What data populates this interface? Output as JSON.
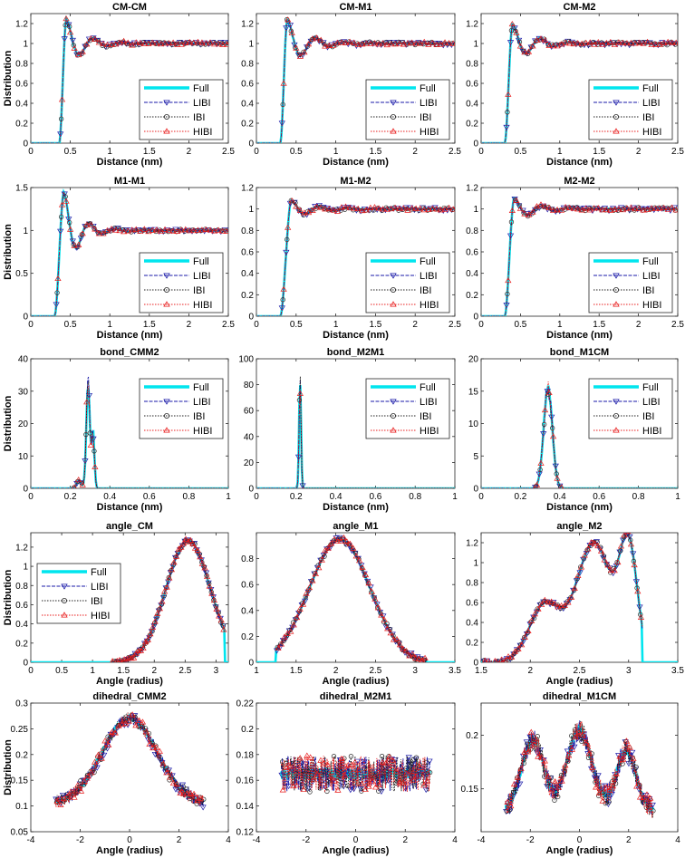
{
  "figure": {
    "legend_entries": [
      "Full",
      "LIBI",
      "IBI",
      "HIBI"
    ]
  },
  "styles": {
    "Full": {
      "color": "#00e5ee",
      "marker": "none",
      "dash": "none"
    },
    "LIBI": {
      "color": "#1a1aa8",
      "marker": "tri-down",
      "dash": "4,1.5"
    },
    "IBI": {
      "color": "#222222",
      "marker": "circle",
      "dash": "1.5,1.5"
    },
    "HIBI": {
      "color": "#e81e1e",
      "marker": "tri-up",
      "dash": "1.5,1.5"
    }
  },
  "chart_data": [
    {
      "id": "cm-cm",
      "type": "line",
      "title": "CM-CM",
      "xlabel": "Distance (nm)",
      "ylabel": "Distribution",
      "xlim": [
        0,
        2.5
      ],
      "ylim": [
        0,
        1.3
      ],
      "xticks": [
        0,
        0.5,
        1,
        1.5,
        2,
        2.5
      ],
      "yticks": [
        0,
        0.2,
        0.4,
        0.6,
        0.8,
        1,
        1.2
      ],
      "legend": "bottom-right",
      "shape": "rdf",
      "shape_params": {
        "r0": 0.36,
        "rise": 0.09,
        "peak": 1.25,
        "wavelength": 0.35,
        "decay": 0.22,
        "phase": 0.04
      }
    },
    {
      "id": "cm-m1",
      "type": "line",
      "title": "CM-M1",
      "xlabel": "Distance (nm)",
      "ylabel": "",
      "xlim": [
        0,
        2.5
      ],
      "ylim": [
        0,
        1.3
      ],
      "xticks": [
        0,
        0.5,
        1,
        1.5,
        2,
        2.5
      ],
      "yticks": [
        0,
        0.2,
        0.4,
        0.6,
        0.8,
        1,
        1.2
      ],
      "legend": "bottom-right",
      "shape": "rdf",
      "shape_params": {
        "r0": 0.3,
        "rise": 0.09,
        "peak": 1.25,
        "wavelength": 0.36,
        "decay": 0.24,
        "phase": 0.05
      }
    },
    {
      "id": "cm-m2",
      "type": "line",
      "title": "CM-M2",
      "xlabel": "Distance (nm)",
      "ylabel": "",
      "xlim": [
        0,
        2.5
      ],
      "ylim": [
        0,
        1.3
      ],
      "xticks": [
        0,
        0.5,
        1,
        1.5,
        2,
        2.5
      ],
      "yticks": [
        0,
        0.2,
        0.4,
        0.6,
        0.8,
        1,
        1.2
      ],
      "legend": "bottom-right",
      "shape": "rdf",
      "shape_params": {
        "r0": 0.3,
        "rise": 0.1,
        "peak": 1.2,
        "wavelength": 0.36,
        "decay": 0.26,
        "phase": 0.05
      }
    },
    {
      "id": "m1-m1",
      "type": "line",
      "title": "M1-M1",
      "xlabel": "Distance (nm)",
      "ylabel": "Distribution",
      "xlim": [
        0,
        2.5
      ],
      "ylim": [
        0,
        1.5
      ],
      "xticks": [
        0,
        0.5,
        1,
        1.5,
        2,
        2.5
      ],
      "yticks": [
        0,
        0.5,
        1,
        1.5
      ],
      "legend": "bottom-right",
      "shape": "rdf",
      "shape_params": {
        "r0": 0.3,
        "rise": 0.12,
        "peak": 1.45,
        "wavelength": 0.33,
        "decay": 0.2,
        "phase": 0.05
      }
    },
    {
      "id": "m1-m2",
      "type": "line",
      "title": "M1-M2",
      "xlabel": "Distance (nm)",
      "ylabel": "",
      "xlim": [
        0,
        2.5
      ],
      "ylim": [
        0,
        1.2
      ],
      "xticks": [
        0,
        0.5,
        1,
        1.5,
        2,
        2.5
      ],
      "yticks": [
        0,
        0.2,
        0.4,
        0.6,
        0.8,
        1,
        1.2
      ],
      "legend": "bottom-right",
      "shape": "rdf",
      "shape_params": {
        "r0": 0.3,
        "rise": 0.14,
        "peak": 1.08,
        "wavelength": 0.36,
        "decay": 0.32,
        "phase": 0.06
      }
    },
    {
      "id": "m2-m2",
      "type": "line",
      "title": "M2-M2",
      "xlabel": "Distance (nm)",
      "ylabel": "",
      "xlim": [
        0,
        2.5
      ],
      "ylim": [
        0,
        1.2
      ],
      "xticks": [
        0,
        0.5,
        1,
        1.5,
        2,
        2.5
      ],
      "yticks": [
        0,
        0.2,
        0.4,
        0.6,
        0.8,
        1,
        1.2
      ],
      "legend": "bottom-right",
      "shape": "rdf",
      "shape_params": {
        "r0": 0.3,
        "rise": 0.12,
        "peak": 1.1,
        "wavelength": 0.36,
        "decay": 0.28,
        "phase": 0.05
      }
    },
    {
      "id": "bond-cmm2",
      "type": "line",
      "title": "bond_CMM2",
      "xlabel": "Distance (nm)",
      "ylabel": "Distribution",
      "xlim": [
        0,
        1
      ],
      "ylim": [
        0,
        40
      ],
      "xticks": [
        0,
        0.2,
        0.4,
        0.6,
        0.8,
        1
      ],
      "yticks": [
        0,
        10,
        20,
        30,
        40
      ],
      "legend": "top-right",
      "shape": "bonds",
      "shape_params": {
        "peaks": [
          [
            0.245,
            2.5,
            0.012
          ],
          [
            0.29,
            32,
            0.009
          ],
          [
            0.315,
            17,
            0.007
          ]
        ]
      }
    },
    {
      "id": "bond-m2m1",
      "type": "line",
      "title": "bond_M2M1",
      "xlabel": "Distance (nm)",
      "ylabel": "",
      "xlim": [
        0,
        1
      ],
      "ylim": [
        0,
        100
      ],
      "xticks": [
        0,
        0.2,
        0.4,
        0.6,
        0.8,
        1
      ],
      "yticks": [
        0,
        20,
        40,
        60,
        80,
        100
      ],
      "legend": "top-right",
      "shape": "bonds",
      "shape_params": {
        "peaks": [
          [
            0.22,
            80,
            0.005
          ]
        ]
      }
    },
    {
      "id": "bond-m1cm",
      "type": "line",
      "title": "bond_M1CM",
      "xlabel": "Distance (nm)",
      "ylabel": "",
      "xlim": [
        0,
        1
      ],
      "ylim": [
        0,
        20
      ],
      "xticks": [
        0,
        0.2,
        0.4,
        0.6,
        0.8,
        1
      ],
      "yticks": [
        0,
        5,
        10,
        15,
        20
      ],
      "legend": "top-right",
      "shape": "bonds",
      "shape_params": {
        "peaks": [
          [
            0.34,
            15.5,
            0.022
          ]
        ]
      }
    },
    {
      "id": "angle-cm",
      "type": "line",
      "title": "angle_CM",
      "xlabel": "Angle (radius)",
      "ylabel": "Distribution",
      "xlim": [
        0,
        3.2
      ],
      "ylim": [
        0,
        1.35
      ],
      "xticks": [
        0,
        0.5,
        1,
        1.5,
        2,
        2.5,
        3
      ],
      "yticks": [
        0,
        0.2,
        0.4,
        0.6,
        0.8,
        1,
        1.2
      ],
      "legend": "top-left",
      "shape": "gauss",
      "shape_params": {
        "start": 1.3,
        "end": 3.14,
        "parts": [
          [
            2.55,
            1.27,
            0.36
          ]
        ]
      }
    },
    {
      "id": "angle-m1",
      "type": "line",
      "title": "angle_M1",
      "xlabel": "Angle (radius)",
      "ylabel": "",
      "xlim": [
        1,
        3.5
      ],
      "ylim": [
        0,
        1.0
      ],
      "xticks": [
        1,
        1.5,
        2,
        2.5,
        3,
        3.5
      ],
      "yticks": [
        0,
        0.2,
        0.4,
        0.6,
        0.8
      ],
      "legend": "none",
      "shape": "gauss",
      "shape_params": {
        "start": 1.25,
        "end": 3.14,
        "parts": [
          [
            2.05,
            0.95,
            0.38
          ]
        ]
      }
    },
    {
      "id": "angle-m2",
      "type": "line",
      "title": "angle_M2",
      "xlabel": "Angle (radius)",
      "ylabel": "",
      "xlim": [
        1.5,
        3.5
      ],
      "ylim": [
        0,
        1.3
      ],
      "xticks": [
        1.5,
        2,
        2.5,
        3,
        3.5
      ],
      "yticks": [
        0,
        0.2,
        0.4,
        0.6,
        0.8,
        1,
        1.2
      ],
      "legend": "none",
      "shape": "gauss",
      "shape_params": {
        "start": 1.52,
        "end": 3.14,
        "parts": [
          [
            2.15,
            0.58,
            0.16
          ],
          [
            2.65,
            1.2,
            0.18
          ],
          [
            3.0,
            1.1,
            0.09
          ]
        ]
      }
    },
    {
      "id": "dihedral-cmm2",
      "type": "line",
      "title": "dihedral_CMM2",
      "xlabel": "Angle (radius)",
      "ylabel": "Distribution",
      "xlim": [
        -4,
        4
      ],
      "ylim": [
        0.05,
        0.3
      ],
      "xticks": [
        -4,
        -2,
        0,
        2,
        4
      ],
      "yticks": [
        0.05,
        0.1,
        0.15,
        0.2,
        0.25,
        0.3
      ],
      "legend": "none",
      "shape": "dihedral",
      "shape_params": {
        "start": -3,
        "end": 3,
        "base": 0.105,
        "parts": [
          [
            0,
            0.165,
            1.1
          ]
        ],
        "noise": 0.012
      }
    },
    {
      "id": "dihedral-m2m1",
      "type": "line",
      "title": "dihedral_M2M1",
      "xlabel": "Angle (radius)",
      "ylabel": "",
      "xlim": [
        -4,
        4
      ],
      "ylim": [
        0.12,
        0.22
      ],
      "xticks": [
        -4,
        -2,
        0,
        2,
        4
      ],
      "yticks": [
        0.12,
        0.14,
        0.16,
        0.18,
        0.2,
        0.22
      ],
      "legend": "none",
      "shape": "dihedral",
      "shape_params": {
        "start": -3,
        "end": 3,
        "base": 0.165,
        "parts": [],
        "noise": 0.014
      }
    },
    {
      "id": "dihedral-m1cm",
      "type": "line",
      "title": "dihedral_M1CM",
      "xlabel": "Angle (radius)",
      "ylabel": "",
      "xlim": [
        -4,
        4
      ],
      "ylim": [
        0.11,
        0.23
      ],
      "xticks": [
        -4,
        -2,
        0,
        2,
        4
      ],
      "yticks": [
        0.15,
        0.2
      ],
      "legend": "none",
      "shape": "dihedral",
      "shape_params": {
        "start": -3,
        "end": 3,
        "base": 0.13,
        "parts": [
          [
            -1.9,
            0.065,
            0.45
          ],
          [
            0,
            0.075,
            0.5
          ],
          [
            1.9,
            0.055,
            0.4
          ]
        ],
        "noise": 0.01
      }
    }
  ]
}
